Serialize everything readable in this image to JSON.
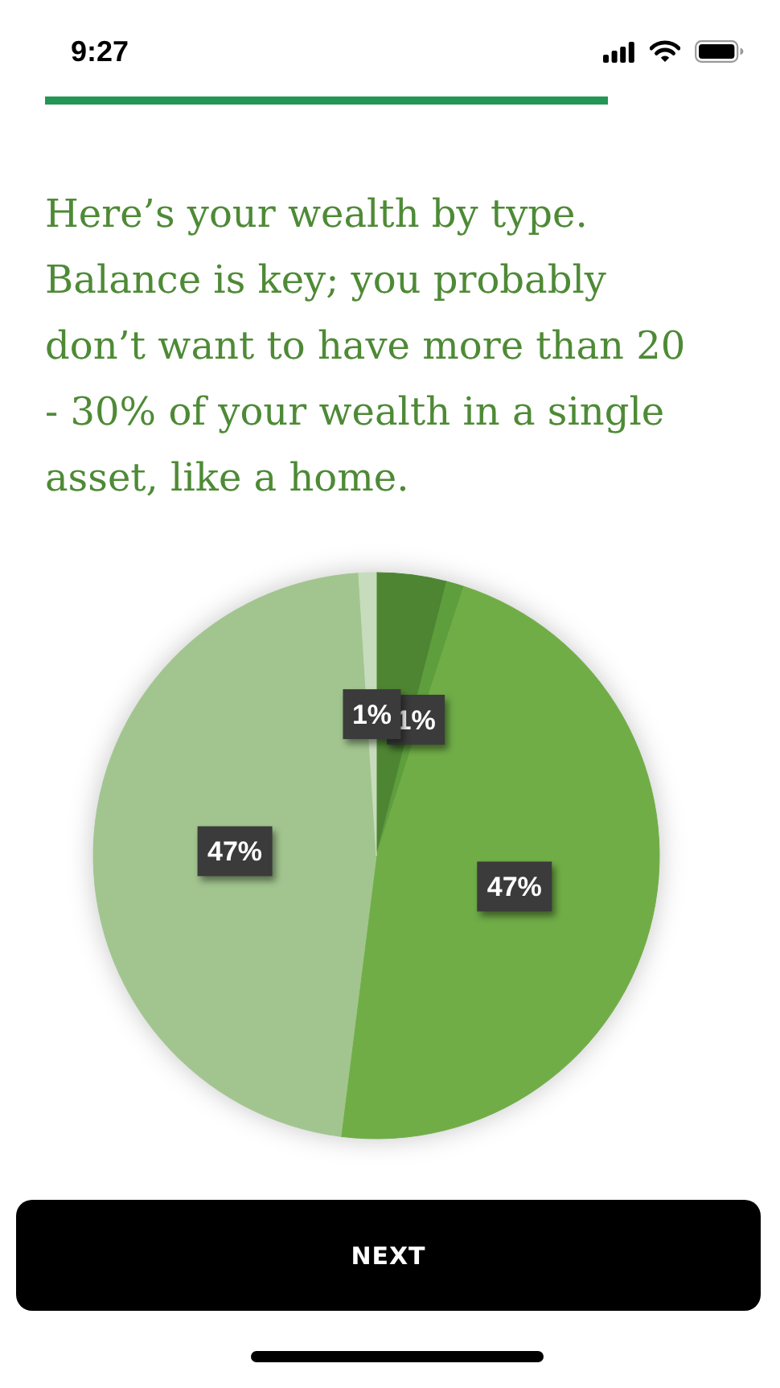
{
  "chart_data": {
    "type": "pie",
    "title": "Here’s your wealth by type. Balance is key; you probably don’t want to have more than 20 - 30% of your wealth in a single asset, like a home.",
    "categories": [
      null,
      null,
      null,
      null,
      null
    ],
    "values": [
      4,
      1,
      47,
      47,
      1
    ],
    "colors": [
      "#4e8533",
      "#5e9e3c",
      "#70ad47",
      "#a2c58f",
      "#c7dcbc"
    ],
    "value_labels": [
      null,
      "1%",
      "47%",
      "47%",
      "1%"
    ],
    "annotations": [
      "9:27",
      "NEXT"
    ]
  }
}
